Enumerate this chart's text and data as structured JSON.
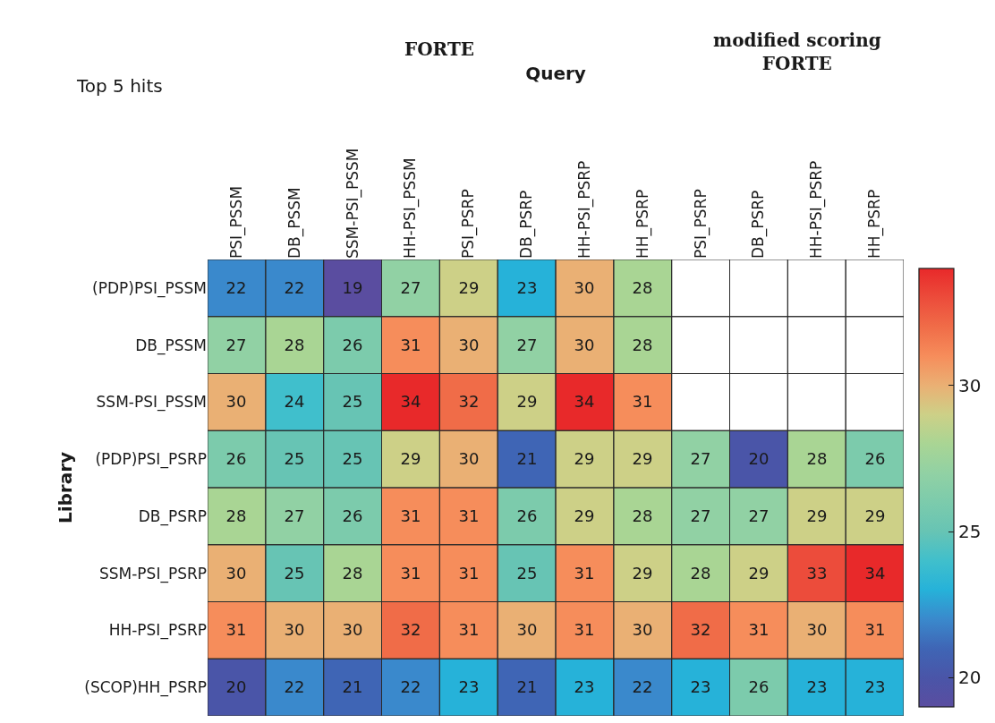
{
  "chart_data": {
    "type": "heatmap",
    "title": "Top 5 hits",
    "xlabel": "Query",
    "ylabel": "Library",
    "annotations": [
      "FORTE",
      "modified scoring\nFORTE"
    ],
    "categories": [
      "PSI_PSSM",
      "DB_PSSM",
      "SSM-PSI_PSSM",
      "HH-PSI_PSSM",
      "PSI_PSRP",
      "DB_PSRP",
      "HH-PSI_PSRP",
      "HH_PSRP",
      "PSI_PSRP",
      "DB_PSRP",
      "HH-PSI_PSRP",
      "HH_PSRP"
    ],
    "y_categories": [
      "(PDP)PSI_PSSM",
      "DB_PSSM",
      "SSM-PSI_PSSM",
      "(PDP)PSI_PSRP",
      "DB_PSRP",
      "SSM-PSI_PSRP",
      "HH-PSI_PSRP",
      "(SCOP)HH_PSRP"
    ],
    "cells": [
      [
        22,
        22,
        19,
        27,
        29,
        23,
        30,
        28,
        null,
        null,
        null,
        null
      ],
      [
        27,
        28,
        26,
        31,
        30,
        27,
        30,
        28,
        null,
        null,
        null,
        null
      ],
      [
        30,
        24,
        25,
        34,
        32,
        29,
        34,
        31,
        null,
        null,
        null,
        null
      ],
      [
        26,
        25,
        25,
        29,
        30,
        21,
        29,
        29,
        27,
        20,
        28,
        26
      ],
      [
        28,
        27,
        26,
        31,
        31,
        26,
        29,
        28,
        27,
        27,
        29,
        29
      ],
      [
        30,
        25,
        28,
        31,
        31,
        25,
        31,
        29,
        28,
        29,
        33,
        34
      ],
      [
        31,
        30,
        30,
        32,
        31,
        30,
        31,
        30,
        32,
        31,
        30,
        31
      ],
      [
        20,
        22,
        21,
        22,
        23,
        21,
        23,
        22,
        23,
        26,
        23,
        23
      ]
    ],
    "clim": [
      19,
      34
    ],
    "cticks": [
      20,
      25,
      30
    ],
    "data_labels": true
  }
}
